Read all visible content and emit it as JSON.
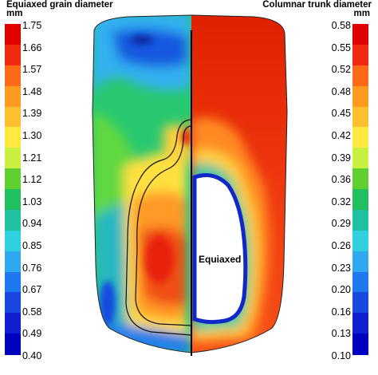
{
  "left_scale": {
    "title": "Equiaxed grain diameter",
    "unit": "mm",
    "ticks": [
      "1.75",
      "1.66",
      "1.57",
      "1.48",
      "1.39",
      "1.30",
      "1.21",
      "1.12",
      "1.03",
      "0.94",
      "0.85",
      "0.76",
      "0.67",
      "0.58",
      "0.49",
      "0.40"
    ]
  },
  "right_scale": {
    "title": "Columnar trunk diameter",
    "unit": "mm",
    "ticks": [
      "0.58",
      "0.55",
      "0.52",
      "0.48",
      "0.45",
      "0.42",
      "0.39",
      "0.36",
      "0.32",
      "0.29",
      "0.26",
      "0.23",
      "0.20",
      "0.16",
      "0.13",
      "0.10"
    ]
  },
  "zone_label": "Equiaxed",
  "colors": [
    "#e00000",
    "#f02a10",
    "#ff6a18",
    "#ff9a20",
    "#ffc030",
    "#ffe840",
    "#c8f040",
    "#60d030",
    "#20c060",
    "#20c0a0",
    "#30d0e0",
    "#30a8f0",
    "#2078f0",
    "#1848e0",
    "#1020d0",
    "#0000c0"
  ]
}
